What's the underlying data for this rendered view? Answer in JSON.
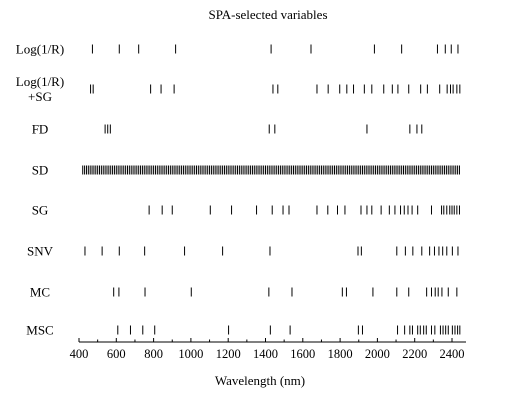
{
  "chart_data": {
    "type": "scatter",
    "title": "SPA-selected variables",
    "xlabel": "Wavelength (nm)",
    "ylabel": "",
    "xlim": [
      400,
      2450
    ],
    "xticks": [
      "400",
      "600",
      "800",
      "1000",
      "1200",
      "1400",
      "1600",
      "1800",
      "2000",
      "2200",
      "2400"
    ],
    "xtick_values": [
      400,
      600,
      800,
      1000,
      1200,
      1400,
      1600,
      1800,
      2000,
      2200,
      2400
    ],
    "marker": "vertical-line",
    "grid": false,
    "legend": "none",
    "series": [
      {
        "name": "Log(1/R)",
        "label_lines": [
          "Log(1/R)"
        ],
        "values": [
          472,
          616,
          720,
          918,
          1430,
          1644,
          1984,
          2130,
          2322,
          2364,
          2396,
          2432
        ]
      },
      {
        "name": "Log(1/R) +SG",
        "label_lines": [
          "Log(1/R)",
          "+SG"
        ],
        "values": [
          462,
          476,
          784,
          840,
          910,
          1440,
          1466,
          1676,
          1736,
          1798,
          1836,
          1872,
          1930,
          1970,
          2034,
          2080,
          2110,
          2168,
          2232,
          2268,
          2334,
          2374,
          2392,
          2406,
          2426,
          2442
        ]
      },
      {
        "name": "FD",
        "label_lines": [
          "FD"
        ],
        "values": [
          540,
          554,
          568,
          1420,
          1450,
          1944,
          2174,
          2212,
          2238
        ]
      },
      {
        "name": "SD",
        "label_lines": [
          "SD"
        ],
        "values": [],
        "dense_range": [
          420,
          2440
        ],
        "dense_step": 10
      },
      {
        "name": "SG",
        "label_lines": [
          "SG"
        ],
        "values": [
          776,
          846,
          900,
          1104,
          1218,
          1352,
          1436,
          1494,
          1526,
          1676,
          1734,
          1786,
          1826,
          1912,
          1944,
          1970,
          2020,
          2064,
          2094,
          2124,
          2144,
          2164,
          2186,
          2216,
          2290,
          2344,
          2356,
          2372,
          2388,
          2400,
          2412,
          2426,
          2440
        ]
      },
      {
        "name": "SNV",
        "label_lines": [
          "SNV"
        ],
        "values": [
          432,
          524,
          616,
          752,
          966,
          1170,
          1424,
          1896,
          1914,
          2104,
          2150,
          2190,
          2238,
          2280,
          2306,
          2330,
          2350,
          2372,
          2402,
          2432
        ]
      },
      {
        "name": "MC",
        "label_lines": [
          "MC"
        ],
        "values": [
          586,
          614,
          754,
          1002,
          1418,
          1542,
          1812,
          1834,
          1976,
          2104,
          2168,
          2264,
          2290,
          2310,
          2326,
          2346,
          2380,
          2426
        ]
      },
      {
        "name": "MSC",
        "label_lines": [
          "MSC"
        ],
        "values": [
          608,
          676,
          742,
          806,
          1202,
          1426,
          1532,
          1898,
          1920,
          2108,
          2146,
          2174,
          2188,
          2216,
          2230,
          2248,
          2262,
          2290,
          2308,
          2338,
          2352,
          2366,
          2380,
          2402,
          2416,
          2430,
          2442
        ]
      }
    ]
  }
}
